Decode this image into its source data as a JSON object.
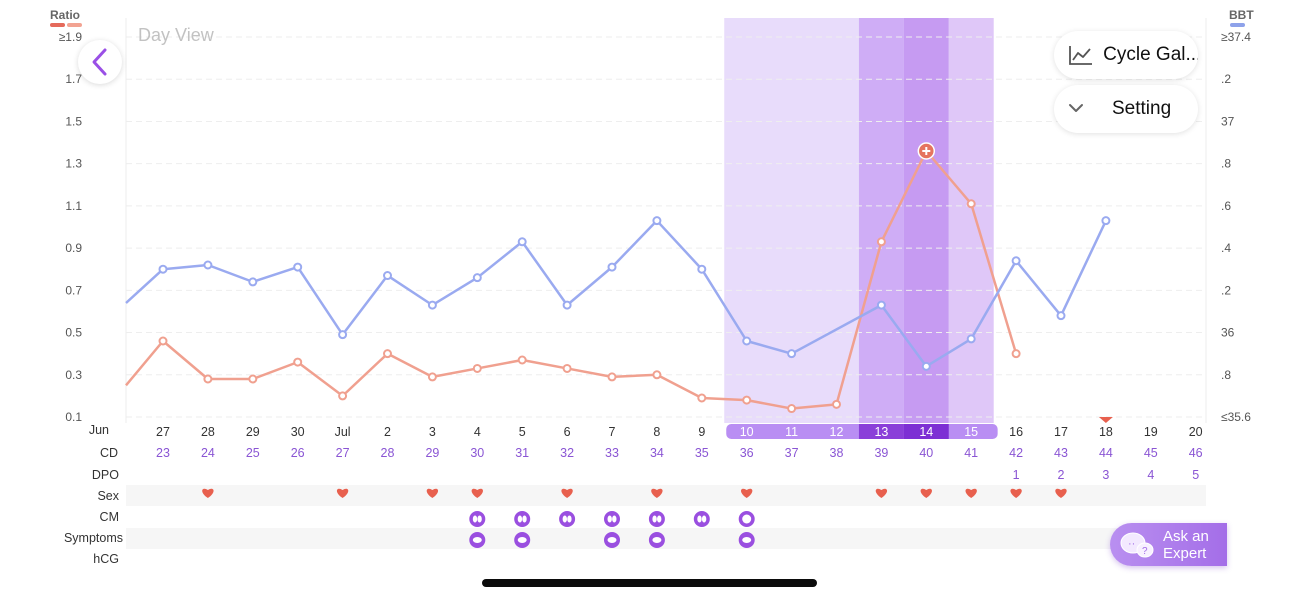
{
  "view_label": "Day View",
  "left_axis": {
    "title": "Ratio",
    "color": "#e56a5b",
    "ticks": [
      "≥1.9",
      "1.7",
      "1.5",
      "1.3",
      "1.1",
      "0.9",
      "0.7",
      "0.5",
      "0.3",
      "0.1"
    ]
  },
  "right_axis": {
    "title": "BBT",
    "color": "#8ea2ea",
    "ticks": [
      "≥37.4",
      ".2",
      "37",
      ".8",
      ".6",
      ".4",
      ".2",
      "36",
      ".8",
      "≤35.6"
    ]
  },
  "buttons": {
    "cycle_gallery": "Cycle Gal...",
    "setting": "Setting",
    "ask_expert_line1": "Ask an",
    "ask_expert_line2": "Expert"
  },
  "row_labels": {
    "date": "Jun",
    "cd": "CD",
    "dpo": "DPO",
    "sex": "Sex",
    "cm": "CM",
    "symptoms": "Symptoms",
    "hcg": "hCG"
  },
  "chart_data": {
    "type": "line",
    "x": [
      "27",
      "28",
      "29",
      "30",
      "Jul",
      "2",
      "3",
      "4",
      "5",
      "6",
      "7",
      "8",
      "9",
      "10",
      "11",
      "12",
      "13",
      "14",
      "15",
      "16",
      "17",
      "18",
      "19",
      "20"
    ],
    "cd": [
      "23",
      "24",
      "25",
      "26",
      "27",
      "28",
      "29",
      "30",
      "31",
      "32",
      "33",
      "34",
      "35",
      "36",
      "37",
      "38",
      "39",
      "40",
      "41",
      "42",
      "43",
      "44",
      "45",
      "46"
    ],
    "dpo": [
      "",
      "",
      "",
      "",
      "",
      "",
      "",
      "",
      "",
      "",
      "",
      "",
      "",
      "",
      "",
      "",
      "",
      "",
      "",
      "1",
      "2",
      "3",
      "4",
      "5"
    ],
    "fertile_window_days": [
      "10",
      "11",
      "12",
      "13",
      "14",
      "15"
    ],
    "peak_days": [
      "13",
      "14"
    ],
    "series": [
      {
        "name": "Ratio",
        "axis": "left",
        "color": "#f0a08f",
        "values": [
          0.46,
          0.28,
          0.28,
          0.36,
          0.2,
          0.4,
          0.29,
          0.33,
          0.37,
          0.33,
          0.29,
          0.3,
          0.19,
          0.18,
          0.14,
          0.16,
          0.93,
          1.36,
          1.11,
          0.4,
          null,
          null,
          null,
          null
        ]
      },
      {
        "name": "BBT",
        "axis": "right",
        "color": "#9aaaf0",
        "values": [
          36.3,
          36.32,
          36.24,
          36.31,
          35.99,
          36.27,
          36.13,
          36.26,
          36.43,
          36.13,
          36.31,
          36.53,
          36.3,
          35.96,
          35.9,
          null,
          36.13,
          35.84,
          35.97,
          36.34,
          36.08,
          36.53,
          null,
          null
        ]
      }
    ],
    "left_ylim": [
      0.1,
      1.9
    ],
    "right_ylim": [
      35.6,
      37.4
    ],
    "grid": true,
    "sex_days": [
      "28",
      "Jul",
      "3",
      "4",
      "6",
      "8",
      "10",
      "13",
      "14",
      "15",
      "16",
      "17"
    ],
    "cm_days": [
      "4",
      "5",
      "6",
      "7",
      "8",
      "9",
      "10"
    ],
    "symptom_days": [
      "4",
      "5",
      "7",
      "8",
      "10"
    ],
    "predicted_marker_day": "18"
  }
}
